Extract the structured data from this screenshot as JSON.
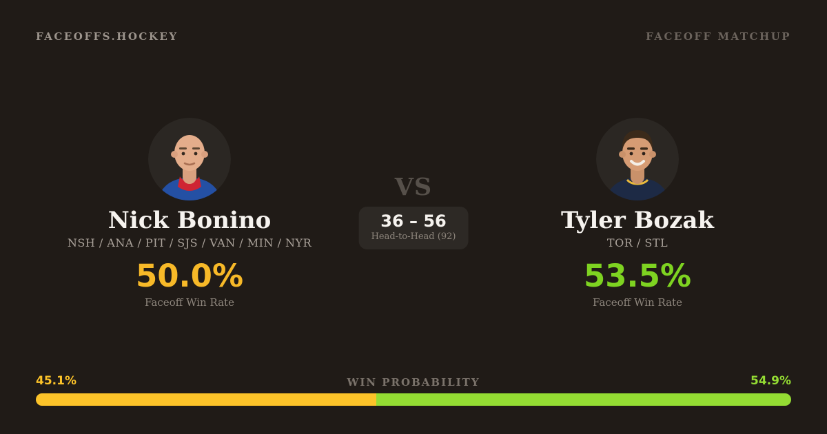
{
  "header": {
    "brand": "FACEOFFS.HOCKEY",
    "page_label": "FACEOFF MATCHUP"
  },
  "players": {
    "left": {
      "name": "Nick Bonino",
      "teams": "NSH / ANA / PIT / SJS / VAN / MIN / NYR",
      "faceoff_win_rate": "50.0%",
      "stat_caption": "Faceoff Win Rate",
      "accent_color": "#f7b928"
    },
    "right": {
      "name": "Tyler Bozak",
      "teams": "TOR / STL",
      "faceoff_win_rate": "53.5%",
      "stat_caption": "Faceoff Win Rate",
      "accent_color": "#7ed321"
    }
  },
  "matchup": {
    "vs_label": "VS",
    "head_to_head_score": "36 – 56",
    "head_to_head_caption": "Head-to-Head (92)"
  },
  "win_probability": {
    "label": "WIN PROBABILITY",
    "left_label": "45.1%",
    "right_label": "54.9%",
    "left_value": 45.1,
    "right_value": 54.9,
    "left_color": "#fcc329",
    "right_color": "#94dc33"
  },
  "colors": {
    "background": "#201b17",
    "card": "#2d2925",
    "text_primary": "#f6f3ef",
    "text_muted": "#8d857c"
  }
}
